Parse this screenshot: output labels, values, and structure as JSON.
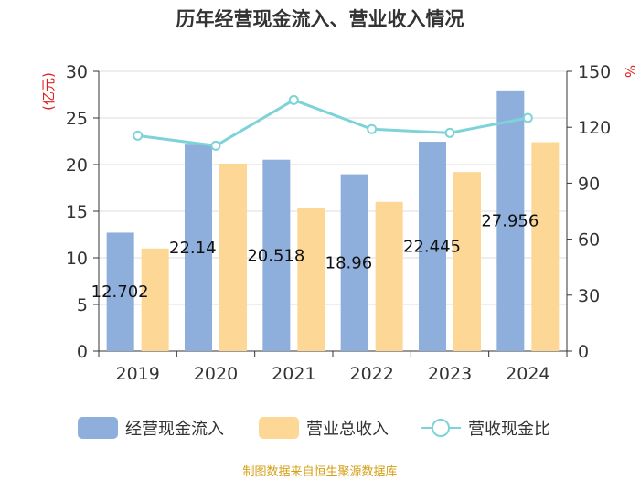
{
  "chart_data": {
    "type": "bar",
    "title": "历年经营现金流入、营业收入情况",
    "categories": [
      "2019",
      "2020",
      "2021",
      "2022",
      "2023",
      "2024"
    ],
    "ylabel_left": "(亿元)",
    "ylabel_right": "%",
    "ylim_left": [
      0,
      30
    ],
    "ylim_right": [
      0,
      150
    ],
    "yticks_left": [
      "0",
      "5",
      "10",
      "15",
      "20",
      "25",
      "30"
    ],
    "yticks_right": [
      "0",
      "30",
      "60",
      "90",
      "120",
      "150"
    ],
    "grid": true,
    "legend_position": "bottom",
    "series": [
      {
        "name": "经营现金流入",
        "type": "bar",
        "axis": "left",
        "color": "#8eaedc",
        "values": [
          12.702,
          22.14,
          20.518,
          18.96,
          22.445,
          27.956
        ],
        "labels": [
          "12.702",
          "22.14",
          "20.518",
          "18.96",
          "22.445",
          "27.956"
        ]
      },
      {
        "name": "营业总收入",
        "type": "bar",
        "axis": "left",
        "color": "#fdd795",
        "values": [
          11.0,
          20.1,
          15.3,
          16.0,
          19.2,
          22.4
        ]
      },
      {
        "name": "营收现金比",
        "type": "line",
        "axis": "right",
        "color": "#7ed3d8",
        "values": [
          115.5,
          110.1,
          134.6,
          119.0,
          117.0,
          125.0
        ]
      }
    ]
  },
  "source": "制图数据来自恒生聚源数据库"
}
